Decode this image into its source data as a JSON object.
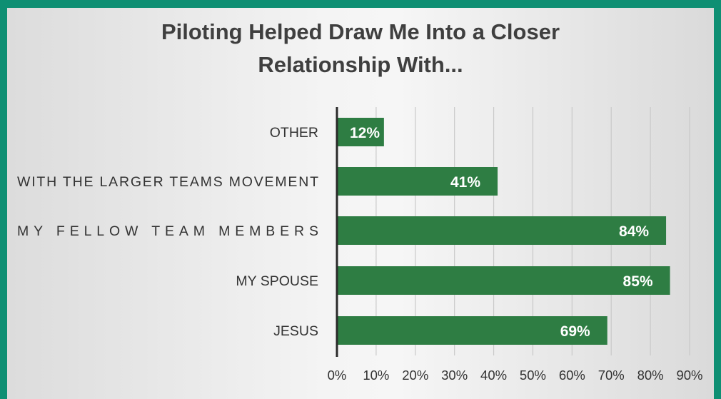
{
  "chart_data": {
    "type": "bar",
    "orientation": "horizontal",
    "title_lines": [
      "Piloting Helped Draw Me Into a Closer",
      "Relationship With..."
    ],
    "categories": [
      "OTHER",
      "WITH THE LARGER TEAMS MOVEMENT",
      "MY FELLOW TEAM MEMBERS",
      "MY SPOUSE",
      "JESUS"
    ],
    "values": [
      12,
      41,
      84,
      85,
      69
    ],
    "value_labels": [
      "12%",
      "41%",
      "84%",
      "85%",
      "69%"
    ],
    "xlim": [
      0,
      90
    ],
    "x_ticks": [
      "0%",
      "10%",
      "20%",
      "30%",
      "40%",
      "50%",
      "60%",
      "70%",
      "80%",
      "90%"
    ],
    "grid": "vertical",
    "colors": {
      "bar": "#2e7d43",
      "frame": "#0e8f73",
      "title": "#3f3f3f",
      "text": "#333333",
      "grid": "#c9c9c9",
      "axis": "#2a2a2a"
    }
  }
}
